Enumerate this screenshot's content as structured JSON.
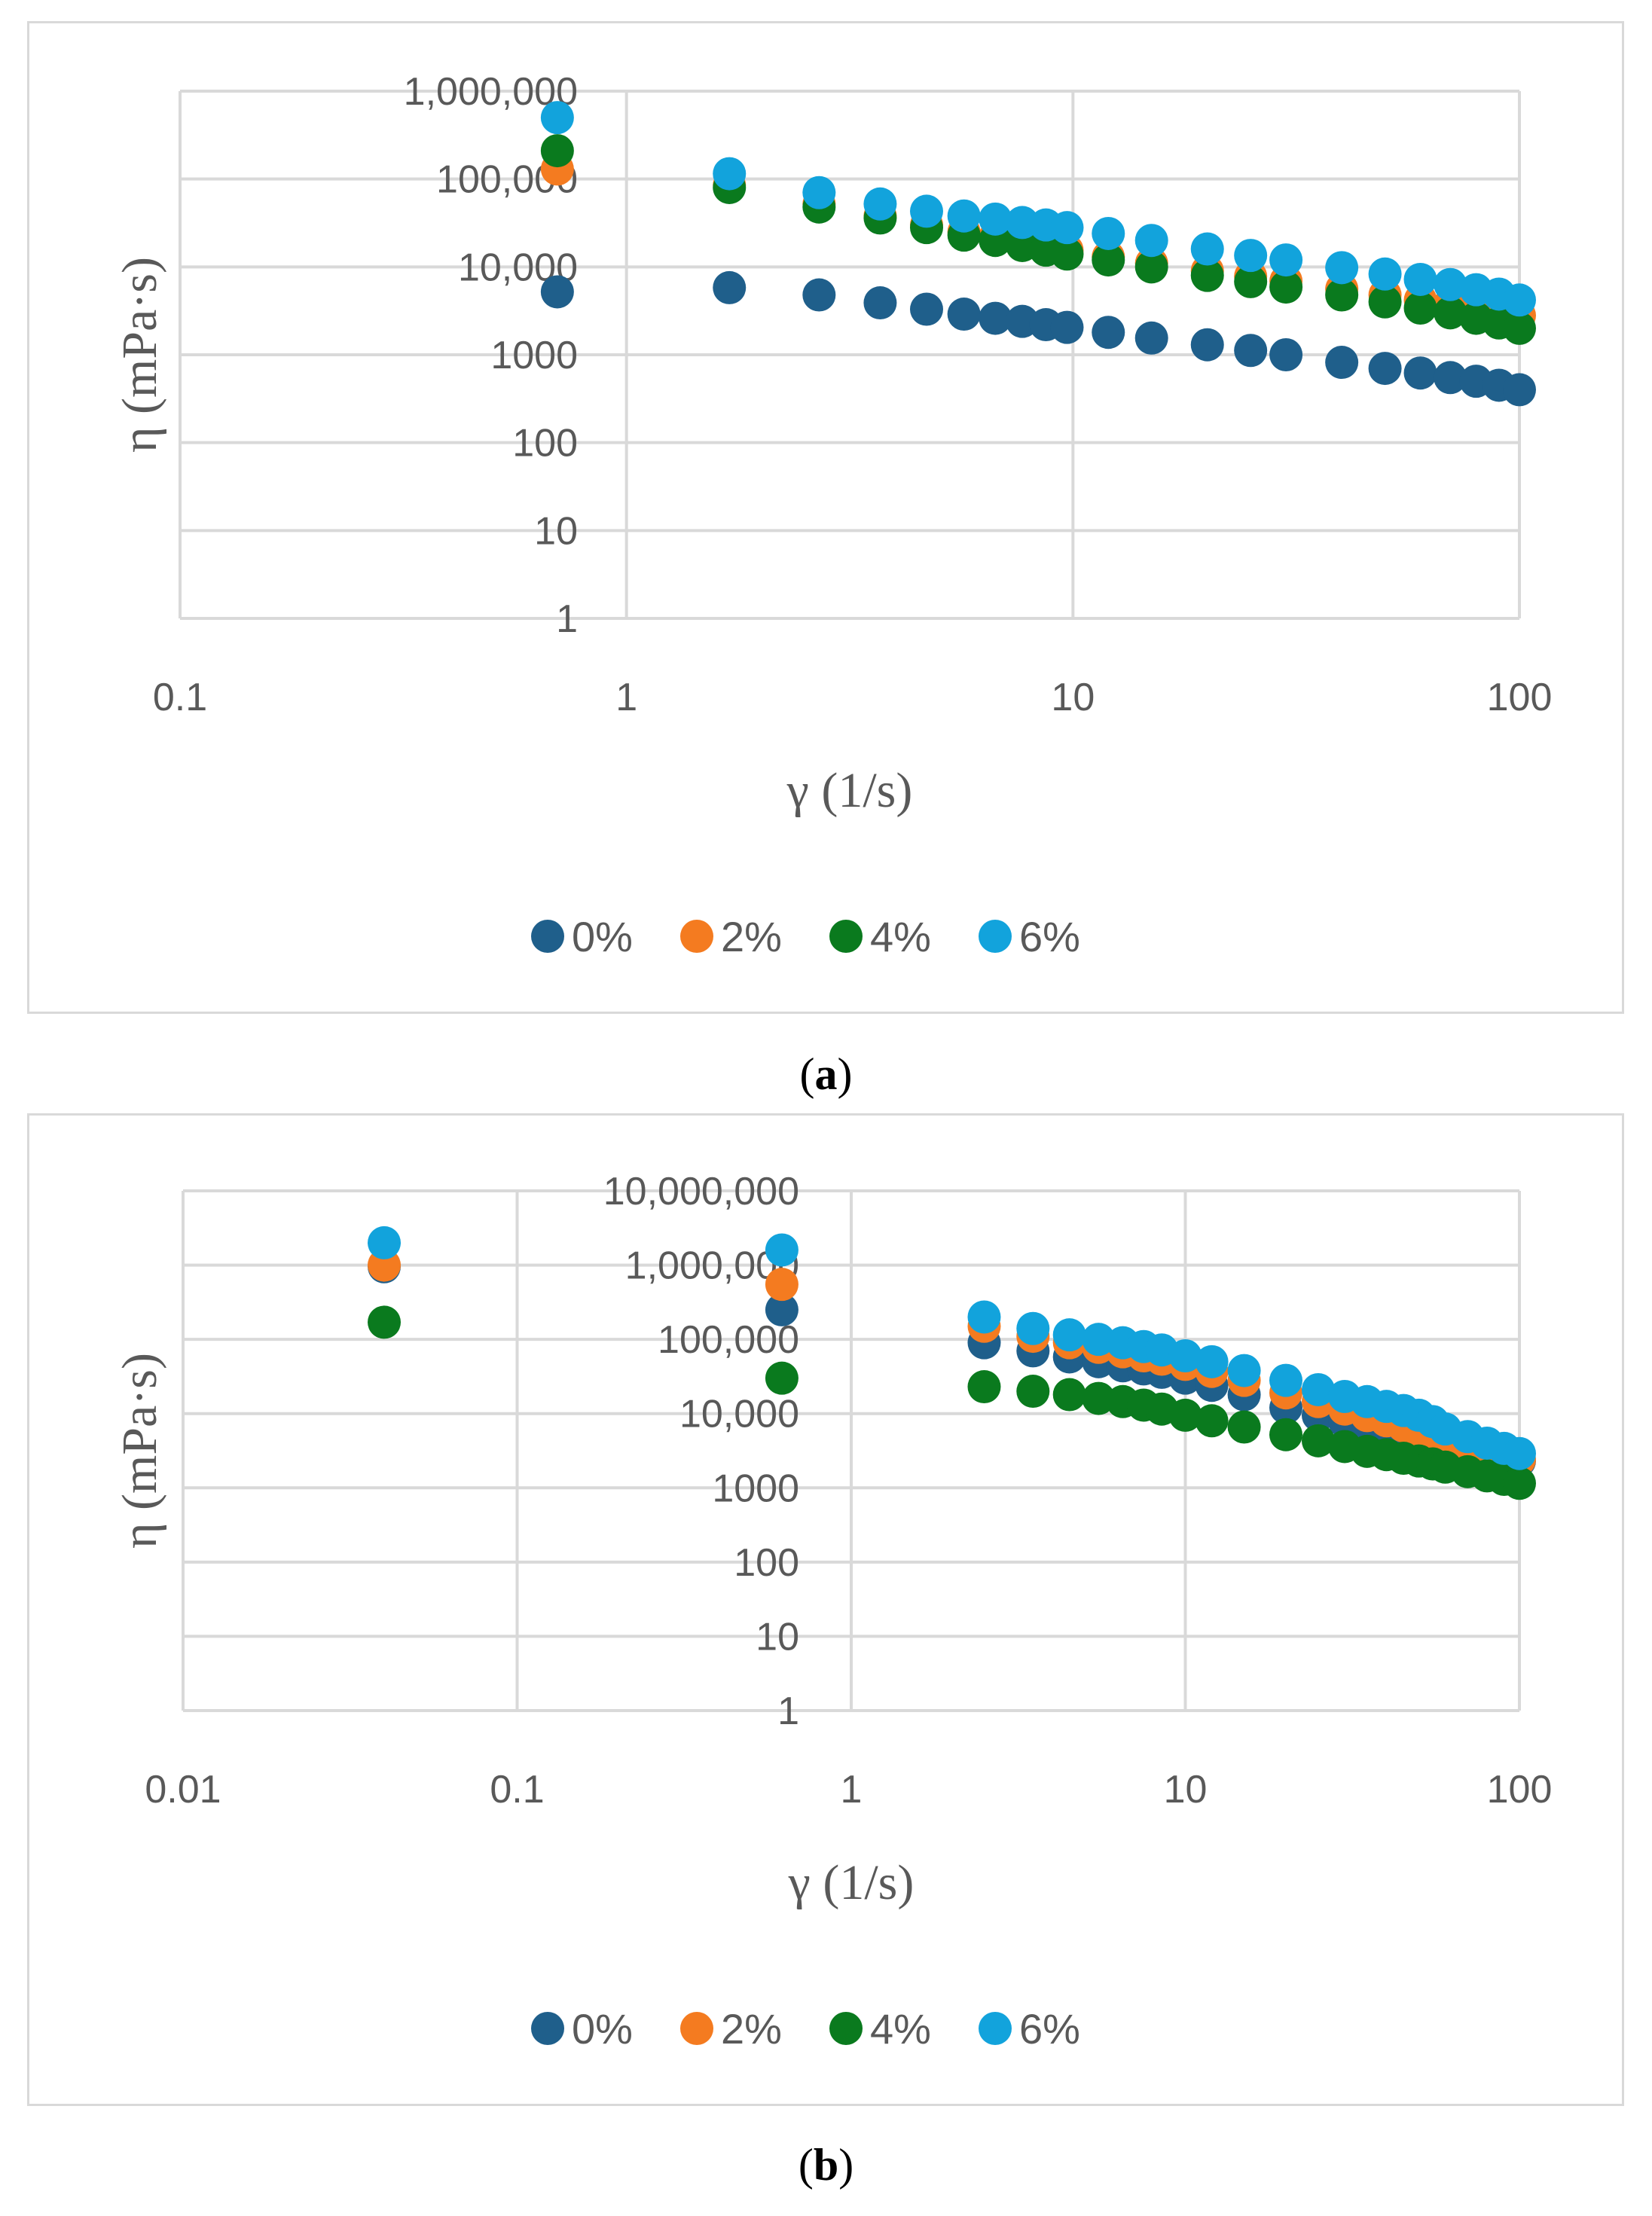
{
  "colors": {
    "s0": "#1f5f8b",
    "s2": "#f47b20",
    "s4": "#0a7a1e",
    "s6": "#12a3dc",
    "grid": "#d9d9d9",
    "axis_text": "#595959"
  },
  "chart_data": [
    {
      "type": "scatter",
      "caption": "a",
      "title": "",
      "xlabel": "γ (1/s)",
      "ylabel": "η (mPa·s)",
      "x_scale": "log",
      "y_scale": "log",
      "xlim": [
        0.1,
        100
      ],
      "ylim": [
        1,
        1000000
      ],
      "x_ticks": [
        0.1,
        1,
        10,
        100
      ],
      "x_tick_labels": [
        "0.1",
        "1",
        "10",
        "100"
      ],
      "y_ticks": [
        1,
        10,
        100,
        1000,
        10000,
        100000,
        1000000
      ],
      "y_tick_labels": [
        "1",
        "10",
        "100",
        "1000",
        "10,000",
        "100,000",
        "1,000,000"
      ],
      "legend_position": "bottom",
      "series": [
        {
          "name": "0%",
          "color_key": "s0",
          "x": [
            0.7,
            1.7,
            2.7,
            3.7,
            4.7,
            5.7,
            6.7,
            7.7,
            8.7,
            9.7,
            12,
            15,
            20,
            25,
            30,
            40,
            50,
            60,
            70,
            80,
            90,
            100
          ],
          "y": [
            5200,
            5800,
            4800,
            3900,
            3300,
            2900,
            2600,
            2400,
            2200,
            2050,
            1800,
            1550,
            1300,
            1120,
            1000,
            820,
            700,
            620,
            550,
            500,
            450,
            400
          ]
        },
        {
          "name": "2%",
          "color_key": "s2",
          "x": [
            0.7,
            1.7,
            2.7,
            3.7,
            4.7,
            5.7,
            6.7,
            7.7,
            8.7,
            9.7,
            12,
            15,
            20,
            25,
            30,
            40,
            50,
            60,
            70,
            80,
            90,
            100
          ],
          "y": [
            130000,
            85000,
            52000,
            38000,
            30000,
            25000,
            22000,
            19000,
            17000,
            15500,
            13000,
            11000,
            9000,
            7800,
            6900,
            5600,
            4800,
            4200,
            3800,
            3400,
            3100,
            2800
          ]
        },
        {
          "name": "4%",
          "color_key": "s4",
          "x": [
            0.7,
            1.7,
            2.7,
            3.7,
            4.7,
            5.7,
            6.7,
            7.7,
            8.7,
            9.7,
            12,
            15,
            20,
            25,
            30,
            40,
            50,
            60,
            70,
            80,
            90,
            100
          ],
          "y": [
            210000,
            80000,
            48000,
            36000,
            28000,
            23000,
            20000,
            17500,
            15500,
            14000,
            12000,
            10000,
            8000,
            6800,
            5900,
            4800,
            4000,
            3400,
            3000,
            2600,
            2300,
            2000
          ]
        },
        {
          "name": "6%",
          "color_key": "s6",
          "x": [
            0.7,
            1.7,
            2.7,
            3.7,
            4.7,
            5.7,
            6.7,
            7.7,
            8.7,
            9.7,
            12,
            15,
            20,
            25,
            30,
            40,
            50,
            60,
            70,
            80,
            90,
            100
          ],
          "y": [
            500000,
            115000,
            70000,
            52000,
            43000,
            38000,
            35000,
            32000,
            30000,
            28000,
            24000,
            20000,
            16000,
            13500,
            12000,
            9800,
            8300,
            7200,
            6300,
            5500,
            4900,
            4200
          ]
        }
      ]
    },
    {
      "type": "scatter",
      "caption": "b",
      "title": "",
      "xlabel": "γ (1/s)",
      "ylabel": "η (mPa·s)",
      "x_scale": "log",
      "y_scale": "log",
      "xlim": [
        0.01,
        100
      ],
      "ylim": [
        1,
        10000000
      ],
      "x_ticks": [
        0.01,
        0.1,
        1,
        10,
        100
      ],
      "x_tick_labels": [
        "0.01",
        "0.1",
        "1",
        "10",
        "100"
      ],
      "y_ticks": [
        1,
        10,
        100,
        1000,
        10000,
        100000,
        1000000,
        10000000
      ],
      "y_tick_labels": [
        "1",
        "10",
        "100",
        "1000",
        "10,000",
        "100,000",
        "1,000,000",
        "10,000,000"
      ],
      "legend_position": "bottom",
      "series": [
        {
          "name": "0%",
          "color_key": "s0",
          "x": [
            0.04,
            0.62,
            2.5,
            3.5,
            4.5,
            5.5,
            6.5,
            7.5,
            8.5,
            10,
            12,
            15,
            20,
            25,
            30,
            35,
            40,
            45,
            50,
            55,
            60,
            70,
            80,
            90,
            100
          ],
          "y": [
            950000,
            250000,
            90000,
            70000,
            58000,
            50000,
            44000,
            40000,
            36000,
            30000,
            24000,
            18000,
            12000,
            9500,
            7800,
            6700,
            5800,
            5200,
            4700,
            4200,
            3900,
            3300,
            2900,
            2600,
            2300
          ]
        },
        {
          "name": "2%",
          "color_key": "s2",
          "x": [
            0.04,
            0.62,
            2.5,
            3.5,
            4.5,
            5.5,
            6.5,
            7.5,
            8.5,
            10,
            12,
            15,
            20,
            25,
            30,
            35,
            40,
            45,
            50,
            55,
            60,
            70,
            80,
            90,
            100
          ],
          "y": [
            1000000,
            550000,
            150000,
            110000,
            90000,
            78000,
            68000,
            60000,
            54000,
            46000,
            37000,
            28000,
            19000,
            14500,
            11500,
            9400,
            8000,
            6800,
            5900,
            5100,
            4500,
            3700,
            3100,
            2700,
            2400
          ]
        },
        {
          "name": "4%",
          "color_key": "s4",
          "x": [
            0.04,
            0.62,
            2.5,
            3.5,
            4.5,
            5.5,
            6.5,
            7.5,
            8.5,
            10,
            12,
            15,
            20,
            25,
            30,
            35,
            40,
            45,
            50,
            55,
            60,
            70,
            80,
            90,
            100
          ],
          "y": [
            170000,
            30000,
            23000,
            20000,
            18000,
            16000,
            14500,
            13000,
            11500,
            9500,
            8000,
            6600,
            5200,
            4300,
            3600,
            3100,
            2800,
            2500,
            2300,
            2100,
            1900,
            1650,
            1450,
            1300,
            1150
          ]
        },
        {
          "name": "6%",
          "color_key": "s6",
          "x": [
            0.04,
            0.62,
            2.5,
            3.5,
            4.5,
            5.5,
            6.5,
            7.5,
            8.5,
            10,
            12,
            15,
            20,
            25,
            30,
            35,
            40,
            45,
            50,
            55,
            60,
            70,
            80,
            90,
            100
          ],
          "y": [
            2000000,
            1600000,
            200000,
            140000,
            115000,
            100000,
            90000,
            80000,
            72000,
            60000,
            50000,
            38000,
            28000,
            21000,
            17000,
            14500,
            12500,
            11000,
            9500,
            7800,
            6200,
            4900,
            4000,
            3400,
            2900
          ]
        }
      ]
    }
  ]
}
